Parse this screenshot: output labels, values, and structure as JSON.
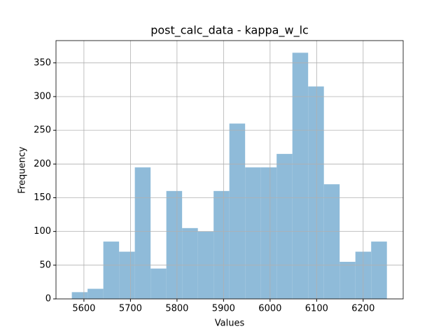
{
  "chart_data": {
    "type": "histogram",
    "title": "post_calc_data - kappa_w_lc",
    "x_label": "Values",
    "y_label": "Frequency",
    "bins": [
      5574,
      5607.85,
      5641.7,
      5675.55,
      5709.4,
      5743.25,
      5777.1,
      5810.95,
      5844.8,
      5878.65,
      5912.5,
      5946.35,
      5980.2,
      6014.05,
      6047.9,
      6081.75,
      6115.6,
      6149.45,
      6183.3,
      6217.15,
      6251
    ],
    "values": [
      10,
      15,
      85,
      70,
      195,
      45,
      160,
      105,
      100,
      160,
      260,
      195,
      195,
      215,
      365,
      315,
      170,
      55,
      70,
      85
    ],
    "color": "#8fbbd9",
    "xlim": [
      5540,
      6286
    ],
    "xticks": [
      5600,
      5700,
      5800,
      5900,
      6000,
      6100,
      6200
    ],
    "ylim": [
      0,
      383
    ],
    "yticks": [
      0,
      50,
      100,
      150,
      200,
      250,
      300,
      350
    ],
    "grid": true
  }
}
